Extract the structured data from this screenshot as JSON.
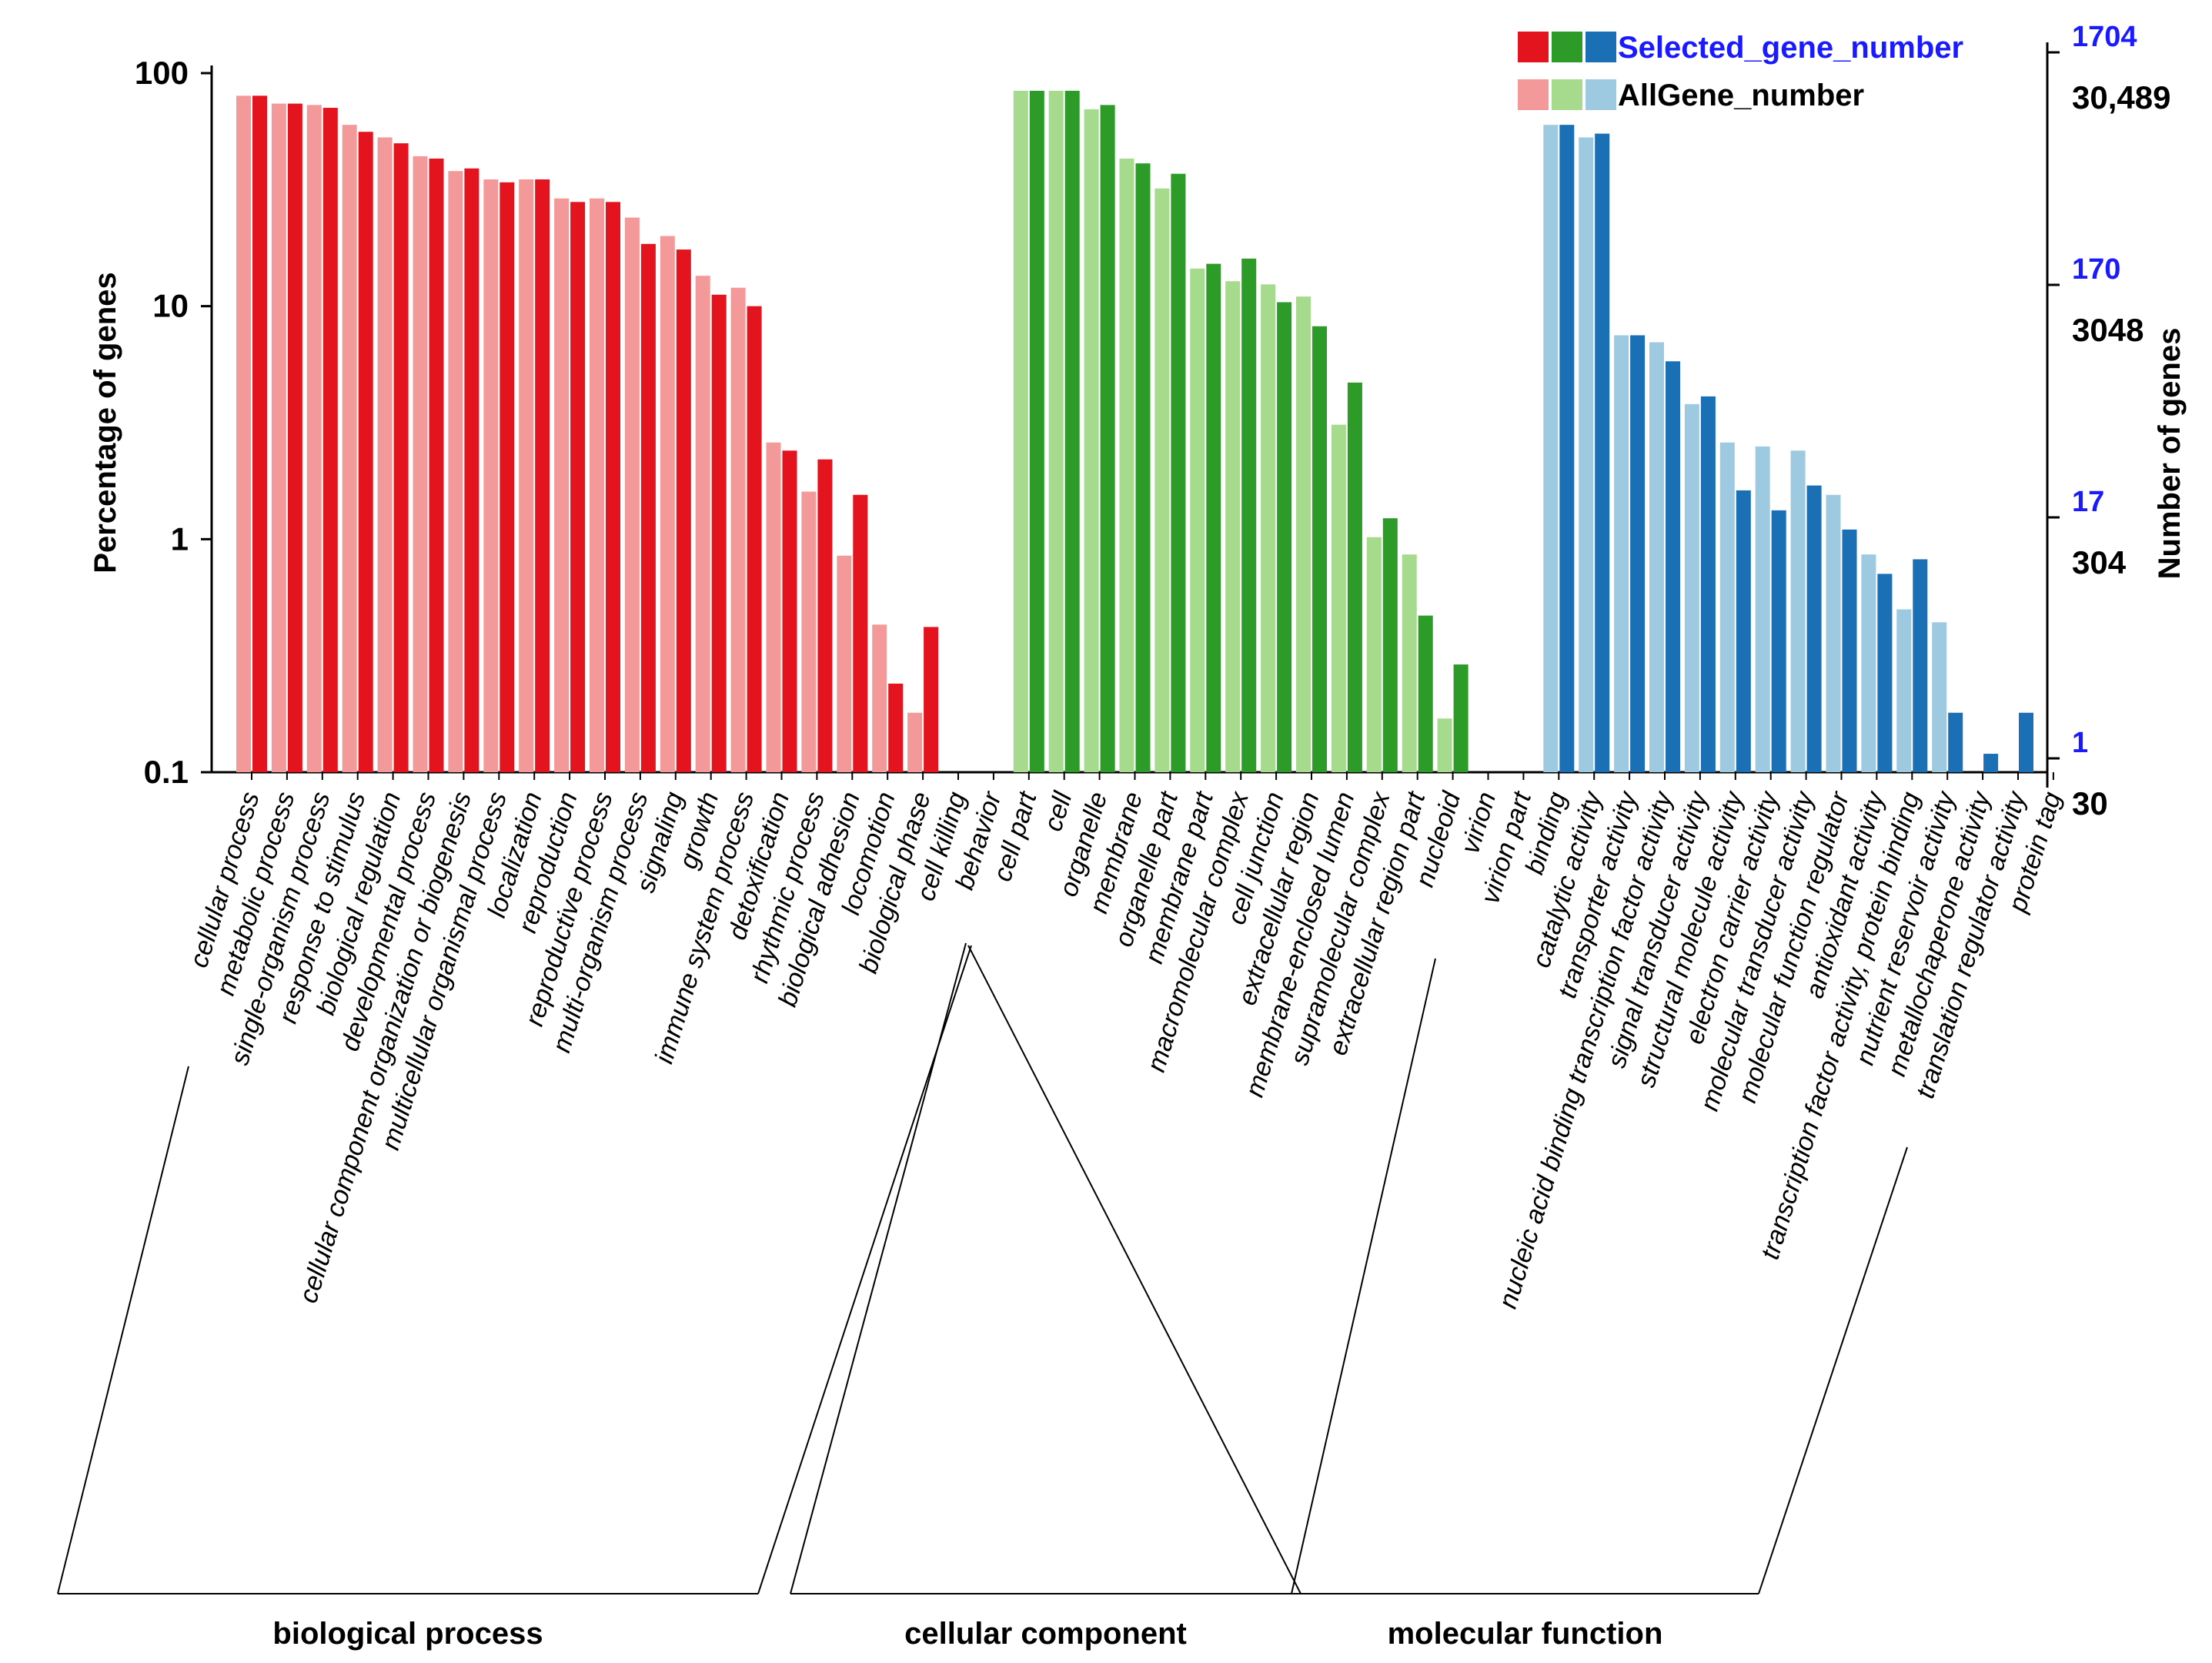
{
  "chart_data": {
    "type": "bar",
    "y_scale": "log",
    "ylabel": "Percentage of genes",
    "ylabel_right": "Number of genes",
    "ylim": [
      0.1,
      100
    ],
    "y_ticks": [
      "100",
      "10",
      "1",
      "0.1"
    ],
    "right_ticks_selected": [
      "1704",
      "170",
      "17",
      "1"
    ],
    "right_ticks_all": [
      "30,489",
      "3048",
      "304",
      "30"
    ],
    "legend": {
      "selected": "Selected_gene_number",
      "all": "AllGene_number"
    },
    "colors": {
      "biological process": {
        "all": "#f4999a",
        "selected": "#e3141d"
      },
      "cellular component": {
        "all": "#a6db8e",
        "selected": "#2d9b27"
      },
      "molecular function": {
        "all": "#9ecae1",
        "selected": "#1a6fb5"
      }
    },
    "groups": [
      {
        "name": "biological process",
        "categories": [
          "cellular process",
          "metabolic process",
          "single-organism process",
          "response to stimulus",
          "biological regulation",
          "developmental process",
          "cellular component organization or biogenesis",
          "multicellular organismal process",
          "localization",
          "reproduction",
          "reproductive process",
          "multi-organism process",
          "signaling",
          "growth",
          "immune system process",
          "detoxification",
          "rhythmic process",
          "biological adhesion",
          "locomotion",
          "biological phase",
          "cell killing",
          "behavior"
        ],
        "all": [
          80,
          74,
          73,
          60,
          53,
          44,
          38,
          35,
          35,
          29,
          29,
          24,
          20,
          13.5,
          12,
          2.6,
          1.6,
          0.85,
          0.43,
          0.18,
          null,
          null
        ],
        "selected": [
          80,
          74,
          71,
          56,
          50,
          43,
          39,
          34,
          35,
          28,
          28,
          18.5,
          17.5,
          11.2,
          10,
          2.4,
          2.2,
          1.55,
          0.24,
          0.42,
          null,
          null
        ]
      },
      {
        "name": "cellular component",
        "categories": [
          "cell part",
          "cell",
          "organelle",
          "membrane",
          "organelle part",
          "membrane part",
          "macromolecular complex",
          "cell junction",
          "extracellular region",
          "membrane-enclosed lumen",
          "supramolecular complex",
          "extracellular region part",
          "nucleoid",
          "virion",
          "virion part"
        ],
        "all": [
          84,
          84,
          70,
          43,
          32,
          14.5,
          12.8,
          12.4,
          11,
          3.1,
          1.02,
          0.86,
          0.17,
          null,
          null
        ],
        "selected": [
          84,
          84,
          73,
          41,
          37,
          15.2,
          16,
          10.4,
          8.2,
          4.7,
          1.23,
          0.47,
          0.29,
          null,
          null
        ]
      },
      {
        "name": "molecular function",
        "categories": [
          "binding",
          "catalytic activity",
          "transporter activity",
          "nucleic acid binding transcription factor activity",
          "signal transducer activity",
          "structural molecule activity",
          "electron carrier activity",
          "molecular transducer activity",
          "molecular function regulator",
          "antioxidant activity",
          "transcription factor activity, protein binding",
          "nutrient reservoir activity",
          "metallochaperone activity",
          "translation regulator activity",
          "protein tag"
        ],
        "all": [
          60,
          53,
          7.5,
          7,
          3.8,
          2.6,
          2.5,
          2.4,
          1.55,
          0.86,
          0.5,
          0.44,
          null,
          null,
          null
        ],
        "selected": [
          60,
          55,
          7.5,
          5.8,
          4.1,
          1.62,
          1.33,
          1.7,
          1.1,
          0.71,
          0.82,
          0.18,
          0.12,
          0.18,
          null
        ]
      }
    ]
  }
}
